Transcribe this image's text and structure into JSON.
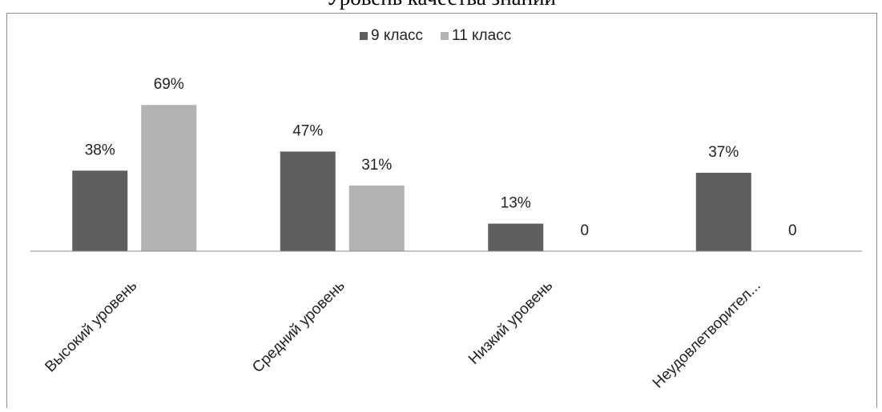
{
  "page": {
    "caption": "Уровень качества знаний"
  },
  "chart_data": {
    "type": "bar",
    "title": "",
    "xlabel": "",
    "ylabel": "",
    "ylim": [
      0,
      100
    ],
    "grid": false,
    "legend_position": "top",
    "categories": [
      "Высокий  уровень",
      "Средний уровень",
      "Низкий уровень",
      "Неудовлетворител..."
    ],
    "series": [
      {
        "name": "9 класс",
        "color": "#5f5f5f",
        "values": [
          38,
          47,
          13,
          37
        ],
        "labels": [
          "38%",
          "47%",
          "13%",
          "37%"
        ]
      },
      {
        "name": "11 класс",
        "color": "#b2b2b2",
        "values": [
          69,
          31,
          0,
          0
        ],
        "labels": [
          "69%",
          "31%",
          "0",
          "0"
        ]
      }
    ]
  }
}
